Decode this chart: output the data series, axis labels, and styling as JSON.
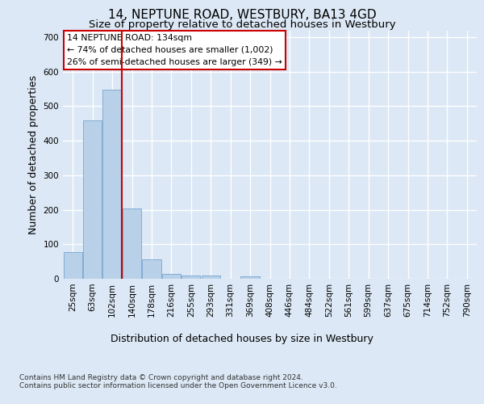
{
  "title1": "14, NEPTUNE ROAD, WESTBURY, BA13 4GD",
  "title2": "Size of property relative to detached houses in Westbury",
  "xlabel": "Distribution of detached houses by size in Westbury",
  "ylabel": "Number of detached properties",
  "footnote": "Contains HM Land Registry data © Crown copyright and database right 2024.\nContains public sector information licensed under the Open Government Licence v3.0.",
  "bin_labels": [
    "25sqm",
    "63sqm",
    "102sqm",
    "140sqm",
    "178sqm",
    "216sqm",
    "255sqm",
    "293sqm",
    "331sqm",
    "369sqm",
    "408sqm",
    "446sqm",
    "484sqm",
    "522sqm",
    "561sqm",
    "599sqm",
    "637sqm",
    "675sqm",
    "714sqm",
    "752sqm",
    "790sqm"
  ],
  "bar_values": [
    78,
    460,
    548,
    203,
    57,
    15,
    10,
    10,
    0,
    8,
    0,
    0,
    0,
    0,
    0,
    0,
    0,
    0,
    0,
    0,
    0
  ],
  "bar_color": "#b8d0e8",
  "bar_edge_color": "#6699cc",
  "vline_color": "#cc0000",
  "annotation_text": "14 NEPTUNE ROAD: 134sqm\n← 74% of detached houses are smaller (1,002)\n26% of semi-detached houses are larger (349) →",
  "annotation_box_color": "#ffffff",
  "annotation_box_edge": "#cc0000",
  "ylim": [
    0,
    720
  ],
  "yticks": [
    0,
    100,
    200,
    300,
    400,
    500,
    600,
    700
  ],
  "bg_color": "#dce8f5",
  "plot_bg_color": "#dce8f5",
  "grid_color": "#ffffff",
  "title1_fontsize": 11,
  "title2_fontsize": 9.5,
  "tick_fontsize": 7.5,
  "ylabel_fontsize": 9,
  "xlabel_fontsize": 9,
  "footnote_fontsize": 6.5
}
